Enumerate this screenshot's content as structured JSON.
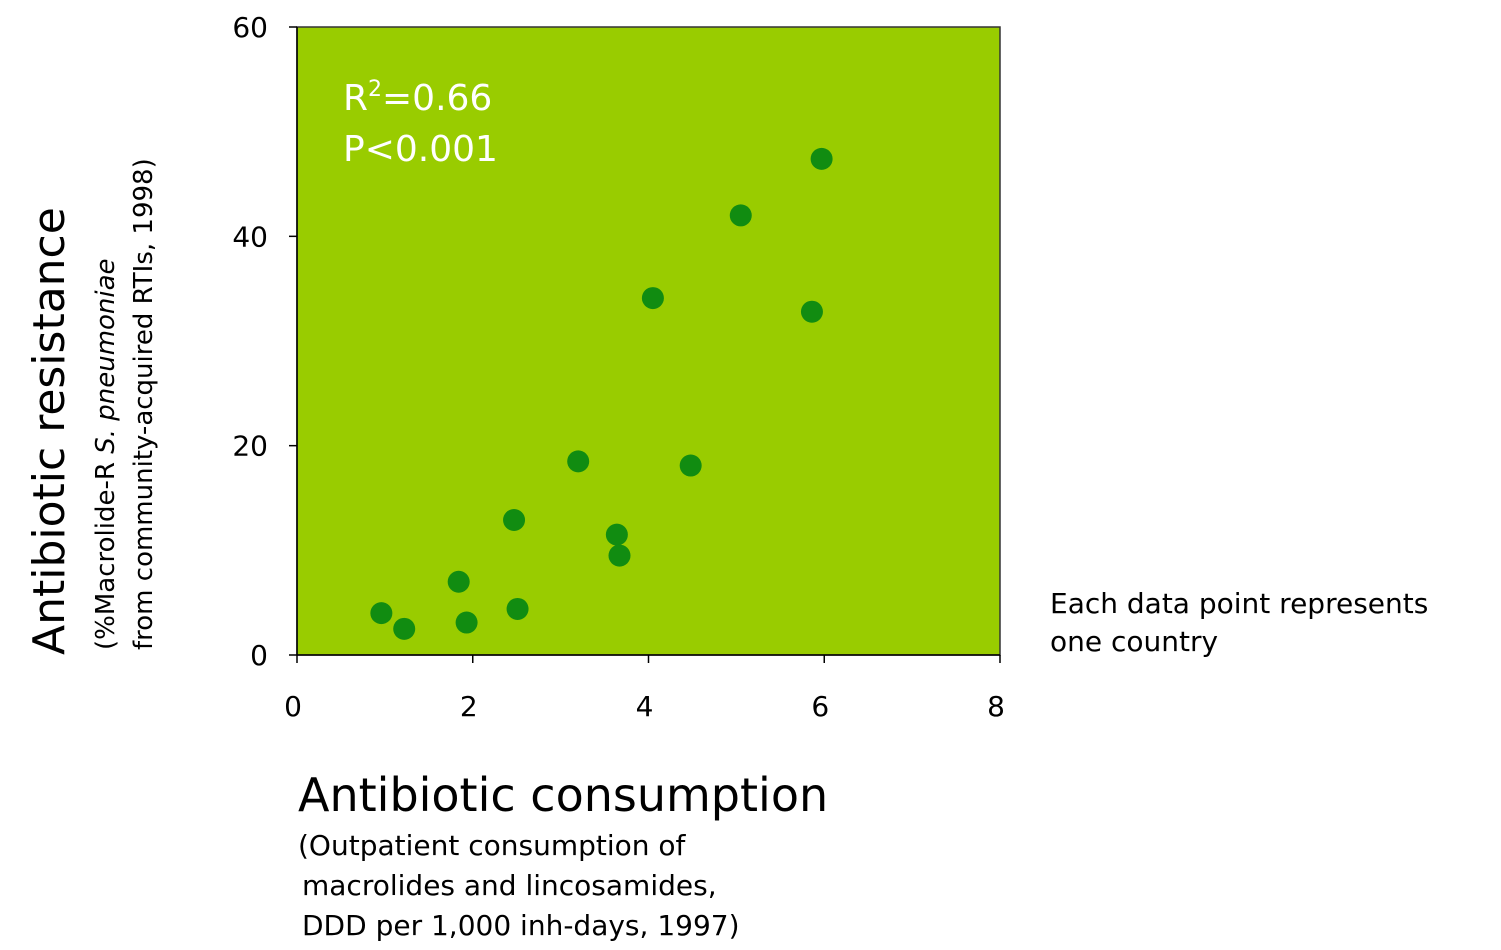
{
  "chart_data": {
    "type": "scatter",
    "annotation": {
      "r_base": "R",
      "r_sup": "2",
      "r_rest": "=0.66",
      "p": "P<0.001"
    },
    "ylabel": {
      "main": "Antibiotic resistance",
      "line2_a": "(%Macrolide-R ",
      "line2_b": "S. pneumoniae",
      "line3": "from community-acquired RTIs, 1998)"
    },
    "xlabel": {
      "main": "Antibiotic consumption",
      "lines": [
        "(Outpatient consumption of",
        "macrolides and lincosamides,",
        "DDD per 1,000 inh-days, 1997)"
      ]
    },
    "note": [
      "Each data point represents",
      "one country"
    ],
    "x": [
      0.96,
      1.22,
      1.84,
      1.93,
      2.47,
      2.51,
      3.2,
      3.64,
      3.67,
      4.05,
      4.48,
      5.05,
      5.86,
      5.97
    ],
    "values": [
      4.0,
      2.5,
      7.0,
      3.1,
      12.9,
      4.4,
      18.5,
      11.5,
      9.5,
      34.1,
      18.1,
      42.0,
      32.8,
      47.4
    ],
    "color": "#118c11",
    "background": "#99cc00",
    "xlim": [
      0,
      8
    ],
    "xticks": [
      0,
      2,
      4,
      6,
      8
    ],
    "ylim": [
      0,
      60
    ],
    "yticks": [
      0,
      20,
      40,
      60
    ],
    "grid": false
  }
}
